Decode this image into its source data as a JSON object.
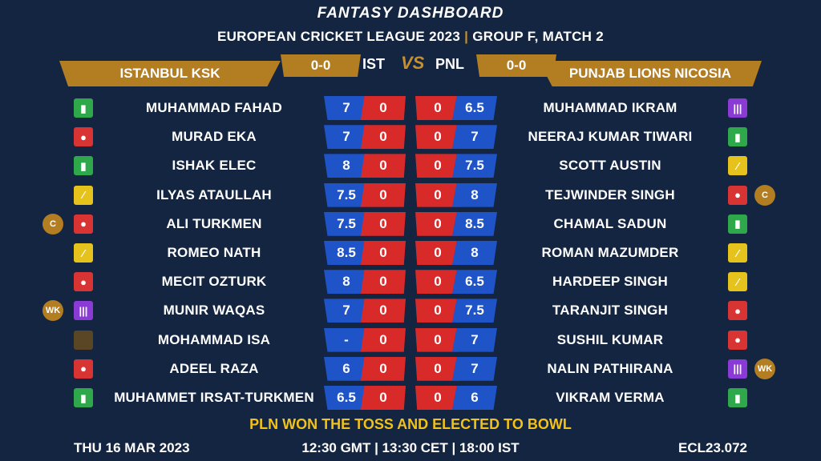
{
  "header": {
    "title": "FANTASY DASHBOARD",
    "league": "EUROPEAN CRICKET LEAGUE 2023",
    "separator": "|",
    "match": "GROUP F, MATCH 2"
  },
  "teams": {
    "left": {
      "name": "ISTANBUL KSK",
      "code": "IST",
      "score": "0-0"
    },
    "right": {
      "name": "PUNJAB LIONS NICOSIA",
      "code": "PNL",
      "score": "0-0"
    },
    "vs": "VS"
  },
  "players": [
    {
      "l": {
        "name": "MUHAMMAD FAHAD",
        "role": "bat",
        "credit": "7",
        "points": "0",
        "badge": ""
      },
      "r": {
        "name": "MUHAMMAD IKRAM",
        "role": "wk",
        "credit": "6.5",
        "points": "0",
        "badge": ""
      }
    },
    {
      "l": {
        "name": "MURAD EKA",
        "role": "bowl",
        "credit": "7",
        "points": "0",
        "badge": ""
      },
      "r": {
        "name": "NEERAJ KUMAR TIWARI",
        "role": "bat",
        "credit": "7",
        "points": "0",
        "badge": ""
      }
    },
    {
      "l": {
        "name": "ISHAK ELEC",
        "role": "bat",
        "credit": "8",
        "points": "0",
        "badge": ""
      },
      "r": {
        "name": "SCOTT AUSTIN",
        "role": "ar",
        "credit": "7.5",
        "points": "0",
        "badge": ""
      }
    },
    {
      "l": {
        "name": "ILYAS ATAULLAH",
        "role": "ar",
        "credit": "7.5",
        "points": "0",
        "badge": ""
      },
      "r": {
        "name": "TEJWINDER SINGH",
        "role": "bowl",
        "credit": "8",
        "points": "0",
        "badge": "C"
      }
    },
    {
      "l": {
        "name": "ALI TURKMEN",
        "role": "bowl",
        "credit": "7.5",
        "points": "0",
        "badge": "C"
      },
      "r": {
        "name": "CHAMAL SADUN",
        "role": "bat",
        "credit": "8.5",
        "points": "0",
        "badge": ""
      }
    },
    {
      "l": {
        "name": "ROMEO NATH",
        "role": "ar",
        "credit": "8.5",
        "points": "0",
        "badge": ""
      },
      "r": {
        "name": "ROMAN MAZUMDER",
        "role": "ar",
        "credit": "8",
        "points": "0",
        "badge": ""
      }
    },
    {
      "l": {
        "name": "MECIT OZTURK",
        "role": "bowl",
        "credit": "8",
        "points": "0",
        "badge": ""
      },
      "r": {
        "name": "HARDEEP SINGH",
        "role": "ar",
        "credit": "6.5",
        "points": "0",
        "badge": ""
      }
    },
    {
      "l": {
        "name": "MUNIR WAQAS",
        "role": "wk",
        "credit": "7",
        "points": "0",
        "badge": "WK"
      },
      "r": {
        "name": "TARANJIT SINGH",
        "role": "bowl",
        "credit": "7.5",
        "points": "0",
        "badge": ""
      }
    },
    {
      "l": {
        "name": "MOHAMMAD ISA",
        "role": "na",
        "credit": "-",
        "points": "0",
        "badge": ""
      },
      "r": {
        "name": "SUSHIL KUMAR",
        "role": "bowl",
        "credit": "7",
        "points": "0",
        "badge": ""
      }
    },
    {
      "l": {
        "name": "ADEEL RAZA",
        "role": "bowl",
        "credit": "6",
        "points": "0",
        "badge": ""
      },
      "r": {
        "name": "NALIN PATHIRANA",
        "role": "wk",
        "credit": "7",
        "points": "0",
        "badge": "WK"
      }
    },
    {
      "l": {
        "name": "MUHAMMET IRSAT-TURKMEN",
        "role": "bat",
        "credit": "6.5",
        "points": "0",
        "badge": ""
      },
      "r": {
        "name": "VIKRAM VERMA",
        "role": "bat",
        "credit": "6",
        "points": "0",
        "badge": ""
      }
    }
  ],
  "footer": {
    "toss": "PLN WON THE TOSS AND ELECTED TO BOWL",
    "date": "THU 16 MAR 2023",
    "time": "12:30 GMT | 13:30 CET | 18:00 IST",
    "match_code": "ECL23.072"
  },
  "colors": {
    "background": "#132541",
    "gold": "#b37d22",
    "credit_blue": "#1f53c8",
    "points_red": "#d92a2a",
    "toss_yellow": "#f2c11a"
  },
  "role_icons": {
    "bat": "cricket-bat-icon",
    "bowl": "cricket-ball-icon",
    "ar": "all-rounder-icon",
    "wk": "wicket-keeper-stumps-icon",
    "na": "unknown-role-icon"
  }
}
